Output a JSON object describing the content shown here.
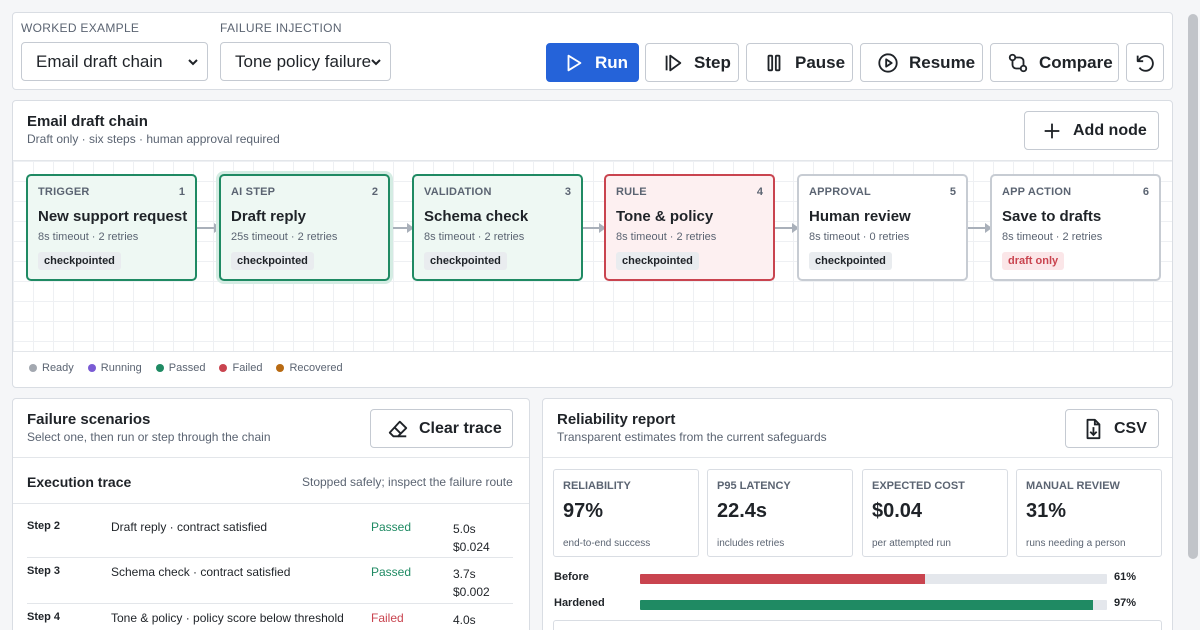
{
  "toolbar": {
    "example_label": "WORKED EXAMPLE",
    "example_value": "Email draft chain",
    "failure_label": "FAILURE INJECTION",
    "failure_value": "Tone policy failure",
    "buttons": {
      "run": "Run",
      "step": "Step",
      "pause": "Pause",
      "resume": "Resume",
      "compare": "Compare"
    },
    "icons": [
      "play-icon",
      "step-icon",
      "pause-icon",
      "resume-icon",
      "compare-icon",
      "reset-icon"
    ]
  },
  "flow": {
    "title": "Email draft chain",
    "subtitle": "Draft only · six steps · human approval required",
    "add_node": "Add node",
    "nodes": [
      {
        "kind": "TRIGGER",
        "num": "1",
        "title": "New support request",
        "meta": "8s timeout · 2 retries",
        "badge": "checkpointed",
        "status": "passed"
      },
      {
        "kind": "AI STEP",
        "num": "2",
        "title": "Draft reply",
        "meta": "25s timeout · 2 retries",
        "badge": "checkpointed",
        "status": "passed"
      },
      {
        "kind": "VALIDATION",
        "num": "3",
        "title": "Schema check",
        "meta": "8s timeout · 2 retries",
        "badge": "checkpointed",
        "status": "passed"
      },
      {
        "kind": "RULE",
        "num": "4",
        "title": "Tone & policy",
        "meta": "8s timeout · 2 retries",
        "badge": "checkpointed",
        "status": "failed"
      },
      {
        "kind": "APPROVAL",
        "num": "5",
        "title": "Human review",
        "meta": "8s timeout · 0 retries",
        "badge": "checkpointed",
        "status": "ready"
      },
      {
        "kind": "APP ACTION",
        "num": "6",
        "title": "Save to drafts",
        "meta": "8s timeout · 2 retries",
        "badge": "draft only",
        "status": "ready"
      }
    ],
    "legend": [
      {
        "label": "Ready",
        "color": "#a3a8b0"
      },
      {
        "label": "Running",
        "color": "#7a5bd4"
      },
      {
        "label": "Passed",
        "color": "#1f8a63"
      },
      {
        "label": "Failed",
        "color": "#c9444f"
      },
      {
        "label": "Recovered",
        "color": "#b86a12"
      }
    ]
  },
  "failures": {
    "title": "Failure scenarios",
    "subtitle": "Select one, then run or step through the chain",
    "clear_trace": "Clear trace",
    "trace_title": "Execution trace",
    "trace_status": "Stopped safely; inspect the failure route",
    "rows": [
      {
        "step": "Step 2",
        "desc": "Draft reply · contract satisfied",
        "status": "Passed",
        "time": "5.0s",
        "cost": "$0.024"
      },
      {
        "step": "Step 3",
        "desc": "Schema check · contract satisfied",
        "status": "Passed",
        "time": "3.7s",
        "cost": "$0.002"
      },
      {
        "step": "Step 4",
        "desc": "Tone & policy · policy score below threshold",
        "status": "Failed",
        "time": "4.0s",
        "cost": ""
      }
    ]
  },
  "report": {
    "title": "Reliability report",
    "subtitle": "Transparent estimates from the current safeguards",
    "csv": "CSV",
    "metrics": [
      {
        "label": "RELIABILITY",
        "value": "97%",
        "note": "end-to-end success"
      },
      {
        "label": "P95 LATENCY",
        "value": "22.4s",
        "note": "includes retries"
      },
      {
        "label": "EXPECTED COST",
        "value": "$0.04",
        "note": "per attempted run"
      },
      {
        "label": "MANUAL REVIEW",
        "value": "31%",
        "note": "runs needing a person"
      }
    ],
    "bars": [
      {
        "label": "Before",
        "percent": 61,
        "display": "61%",
        "color": "#c9444f"
      },
      {
        "label": "Hardened",
        "percent": 97,
        "display": "97%",
        "color": "#1f8a63"
      }
    ]
  },
  "colors": {
    "primary": "#2563d9",
    "passed": "#1f8a63",
    "failed": "#c9444f"
  }
}
